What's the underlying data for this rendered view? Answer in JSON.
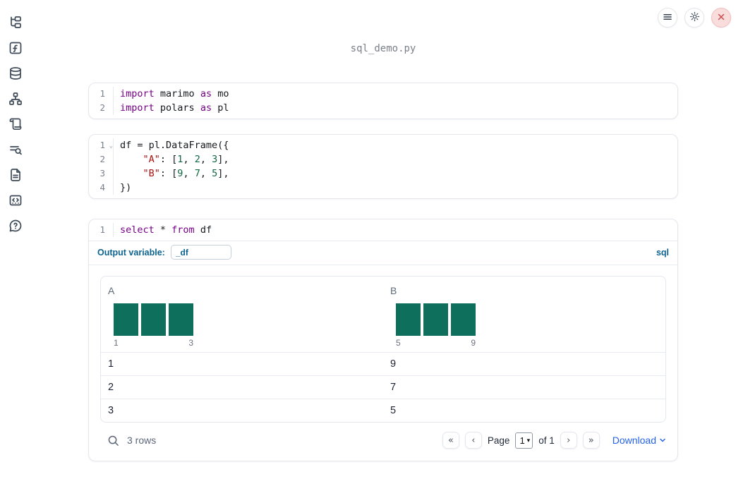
{
  "app": {
    "title": "sql_demo.py"
  },
  "topbar": {
    "buttons": [
      {
        "name": "notebook-menu",
        "icon": "hamburger-icon"
      },
      {
        "name": "settings",
        "icon": "gear-icon"
      },
      {
        "name": "shutdown",
        "icon": "close-icon",
        "accent": "#c94f4f"
      }
    ]
  },
  "sidebar": {
    "items": [
      {
        "name": "file-explorer",
        "icon": "file-tree-icon"
      },
      {
        "name": "variables",
        "icon": "function-square-icon"
      },
      {
        "name": "data-sources",
        "icon": "database-icon"
      },
      {
        "name": "dependencies",
        "icon": "network-graph-icon"
      },
      {
        "name": "logs",
        "icon": "scroll-icon"
      },
      {
        "name": "outline-search",
        "icon": "list-search-icon"
      },
      {
        "name": "documentation",
        "icon": "file-text-icon"
      },
      {
        "name": "snippets",
        "icon": "code-snippet-icon"
      },
      {
        "name": "help-chat",
        "icon": "help-bubble-icon"
      }
    ]
  },
  "cells": [
    {
      "kind": "python",
      "lines": [
        {
          "n": "1",
          "tokens": [
            {
              "c": "kw",
              "t": "import"
            },
            {
              "c": "pl",
              "t": " marimo "
            },
            {
              "c": "kw",
              "t": "as"
            },
            {
              "c": "pl",
              "t": " mo"
            }
          ]
        },
        {
          "n": "2",
          "tokens": [
            {
              "c": "kw",
              "t": "import"
            },
            {
              "c": "pl",
              "t": " polars "
            },
            {
              "c": "kw",
              "t": "as"
            },
            {
              "c": "pl",
              "t": " pl"
            }
          ]
        }
      ]
    },
    {
      "kind": "python",
      "lines": [
        {
          "n": "1",
          "fold": true,
          "tokens": [
            {
              "c": "pl",
              "t": "df = pl.DataFrame({"
            }
          ]
        },
        {
          "n": "2",
          "tokens": [
            {
              "c": "pl",
              "t": "    "
            },
            {
              "c": "str",
              "t": "\"A\""
            },
            {
              "c": "pl",
              "t": ": ["
            },
            {
              "c": "num",
              "t": "1"
            },
            {
              "c": "pl",
              "t": ", "
            },
            {
              "c": "num",
              "t": "2"
            },
            {
              "c": "pl",
              "t": ", "
            },
            {
              "c": "num",
              "t": "3"
            },
            {
              "c": "pl",
              "t": "],"
            }
          ]
        },
        {
          "n": "3",
          "tokens": [
            {
              "c": "pl",
              "t": "    "
            },
            {
              "c": "str",
              "t": "\"B\""
            },
            {
              "c": "pl",
              "t": ": ["
            },
            {
              "c": "num",
              "t": "9"
            },
            {
              "c": "pl",
              "t": ", "
            },
            {
              "c": "num",
              "t": "7"
            },
            {
              "c": "pl",
              "t": ", "
            },
            {
              "c": "num",
              "t": "5"
            },
            {
              "c": "pl",
              "t": "],"
            }
          ]
        },
        {
          "n": "4",
          "tokens": [
            {
              "c": "pl",
              "t": "})"
            }
          ]
        }
      ]
    },
    {
      "kind": "sql",
      "lines": [
        {
          "n": "1",
          "tokens": [
            {
              "c": "kw",
              "t": "select"
            },
            {
              "c": "pl",
              "t": " * "
            },
            {
              "c": "kw",
              "t": "from"
            },
            {
              "c": "pl",
              "t": " df"
            }
          ]
        }
      ]
    }
  ],
  "sql_cell": {
    "output_variable_label": "Output variable:",
    "output_variable_value": "_df",
    "language_badge": "sql"
  },
  "table": {
    "columns": [
      {
        "name": "A",
        "histogram": {
          "bars": [
            1,
            1,
            1
          ],
          "min_label": "1",
          "max_label": "3"
        }
      },
      {
        "name": "B",
        "histogram": {
          "bars": [
            1,
            1,
            1
          ],
          "min_label": "5",
          "max_label": "9"
        }
      }
    ],
    "rows": [
      [
        "1",
        "9"
      ],
      [
        "2",
        "7"
      ],
      [
        "3",
        "5"
      ]
    ],
    "footer": {
      "row_count": "3 rows",
      "page_label": "Page",
      "page_value": "1",
      "of_label": "of 1",
      "download_label": "Download"
    }
  },
  "colors": {
    "accent_blue": "#0d6390",
    "link_blue": "#2563eb",
    "histogram_green": "#0e6f5c",
    "keyword_purple": "#770088",
    "string_red": "#aa1111",
    "number_green": "#116644",
    "close_red": "#c94f4f"
  }
}
